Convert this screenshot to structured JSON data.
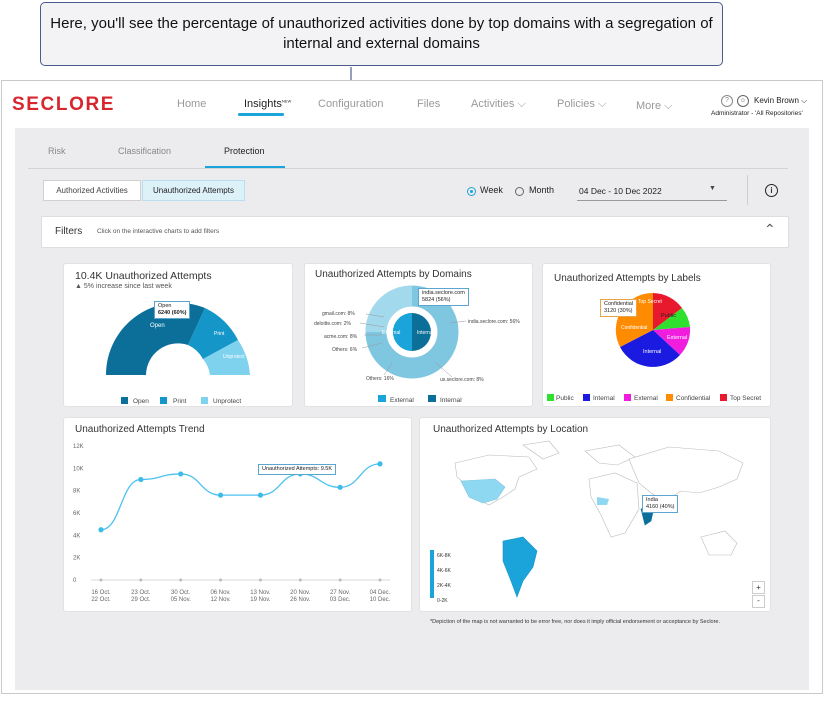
{
  "callout": {
    "text": "Here, you'll see the percentage of unauthorized activities done by top domains with a segregation of internal and external domains"
  },
  "brand": "SECLORE",
  "nav": {
    "home": "Home",
    "insights": "Insights",
    "new_badge": "NEW",
    "configuration": "Configuration",
    "files": "Files",
    "activities": "Activities",
    "policies": "Policies",
    "more": "More"
  },
  "user": {
    "name": "Kevin Brown",
    "role": "Administrator - 'All Repositories'"
  },
  "subtabs": {
    "risk": "Risk",
    "classification": "Classification",
    "protection": "Protection"
  },
  "toggles": {
    "authorized": "Authorized Activities",
    "unauthorized": "Unauthorized Attempts"
  },
  "period": {
    "week": "Week",
    "month": "Month",
    "range": "04 Dec - 10 Dec 2022"
  },
  "filters": {
    "title": "Filters",
    "hint": "Click on the interactive charts to add filters"
  },
  "cards": {
    "attempts": {
      "title": "10.4K Unauthorized Attempts",
      "sub": "5% increase since last week",
      "tooltip_l1": "Open",
      "tooltip_l2": "6240 (60%)",
      "seg_open": "Open",
      "seg_print": "Print",
      "seg_unprotect": "Unprotect",
      "legend": [
        "Open",
        "Print",
        "Unprotect"
      ]
    },
    "domains": {
      "title": "Unauthorized Attempts by Domains",
      "tooltip_l1": "india.seclore.com",
      "tooltip_l2": "5824 (56%)",
      "inner_external": "External",
      "inner_internal": "Internal",
      "labels": {
        "gmail": "gmail.com: 8%",
        "deloitte": "deloitte.com: 2%",
        "acme": "acme.com: 8%",
        "others_int": "Others: 6%",
        "others_ext": "Others: 16%",
        "india": "india.seclore.com: 56%",
        "us": "us.seclore.com: 8%"
      },
      "legend": [
        "External",
        "Internal"
      ]
    },
    "labels": {
      "title": "Unauthorized Attempts by Labels",
      "tooltip_l1": "Confidential",
      "tooltip_l2": "3120 (30%)",
      "slices": {
        "topsecret": "Top Secret",
        "public": "Public",
        "external": "External",
        "internal": "Internal",
        "confidential": "Confidential"
      },
      "legend": [
        "Public",
        "Internal",
        "External",
        "Confidential",
        "Top Secret"
      ]
    },
    "trend": {
      "title": "Unauthorized Attempts Trend",
      "tooltip": "Unauthorized Attempts: 9.5K"
    },
    "location": {
      "title": "Unauthorized Attempts by Location",
      "tooltip_l1": "India",
      "tooltip_l2": "4160 (40%)",
      "legend": [
        "6K-8K",
        "4K-6K",
        "2K-4K",
        "0-2K"
      ],
      "zoom_in": "+",
      "zoom_out": "-",
      "disclaimer": "*Depiction of the map is not warranted to be error free, nor does it imply official endorsement or acceptance by Seclore."
    }
  },
  "chart_data": {
    "type": "line",
    "title": "Unauthorized Attempts Trend",
    "yticks": [
      "12K",
      "10K",
      "8K",
      "6K",
      "4K",
      "2K",
      "0"
    ],
    "ylim": [
      0,
      12000
    ],
    "categories": [
      [
        "16 Oct.",
        "22 Oct."
      ],
      [
        "23 Oct.",
        "29 Oct."
      ],
      [
        "30 Oct.",
        "05 Nov."
      ],
      [
        "06 Nov.",
        "12 Nov."
      ],
      [
        "13 Nov.",
        "19 Nov."
      ],
      [
        "20 Nov.",
        "26 Nov."
      ],
      [
        "27 Nov.",
        "03 Dec."
      ],
      [
        "04 Dec.",
        "10 Dec."
      ]
    ],
    "values": [
      4500,
      9000,
      9500,
      7600,
      7600,
      9500,
      8300,
      10400
    ]
  },
  "colors": {
    "accent": "#1aa4d9",
    "brand": "#d7262e",
    "dark_teal": "#0b6f9a",
    "mid_teal": "#1596c9",
    "light_teal": "#7fd2ee"
  }
}
